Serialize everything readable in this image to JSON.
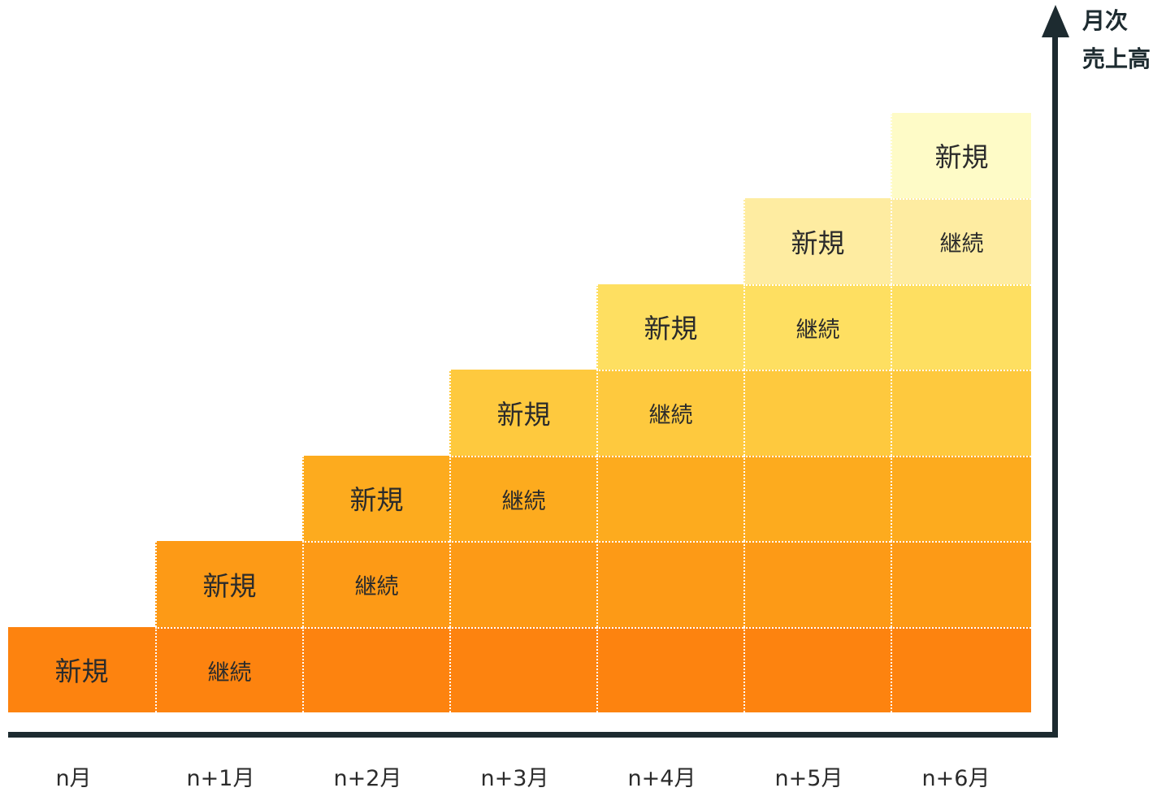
{
  "y_axis_label": [
    "月次",
    "売上高"
  ],
  "months": [
    "n月",
    "n+1月",
    "n+2月",
    "n+3月",
    "n+4月",
    "n+5月",
    "n+6月"
  ],
  "new_label": "新規",
  "continuing_label": "継続",
  "layer_colors": [
    "#fd830f",
    "#fd9a16",
    "#fdab1e",
    "#fec93e",
    "#fedf61",
    "#feeca1",
    "#fefbc7"
  ],
  "axis_color": "#1d2b30"
}
